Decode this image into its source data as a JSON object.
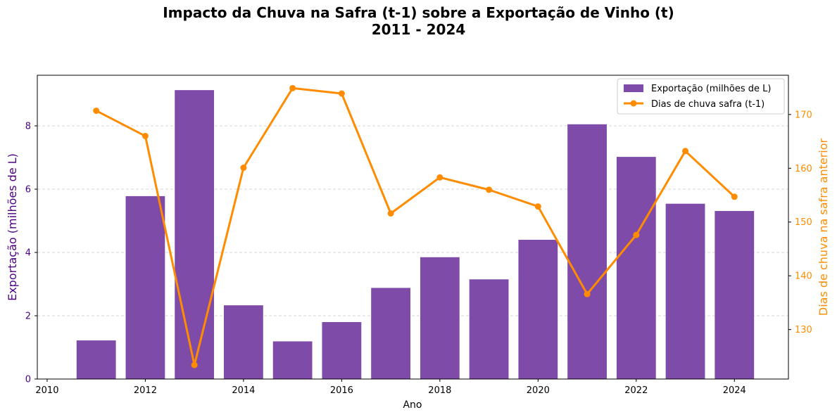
{
  "chart_data": {
    "type": "bar",
    "title": "Impacto da Chuva na Safra (t-1) sobre a Exportação de Vinho (t)",
    "subtitle": "2011 - 2024",
    "xlabel": "Ano",
    "ylabel_left": "Exportação (milhões de L)",
    "ylabel_right": "Dias de chuva na safra anterior",
    "x": [
      2011,
      2012,
      2013,
      2014,
      2015,
      2016,
      2017,
      2018,
      2019,
      2020,
      2021,
      2022,
      2023,
      2024
    ],
    "xlim": [
      2009.8,
      2025.1
    ],
    "ylim_left": [
      0,
      9.6
    ],
    "ylim_right": [
      120.8,
      177.3
    ],
    "x_ticks": [
      2010,
      2012,
      2014,
      2016,
      2018,
      2020,
      2022,
      2024
    ],
    "y_ticks_left": [
      0,
      2,
      4,
      6,
      8
    ],
    "y_ticks_right": [
      130,
      140,
      150,
      160,
      170
    ],
    "grid": "horizontal dashed",
    "legend_position": "upper right",
    "series": [
      {
        "name": "Exportação (milhões de L)",
        "kind": "bar",
        "axis": "left",
        "color": "#7E4BA8",
        "values": [
          1.22,
          5.78,
          9.13,
          2.33,
          1.19,
          1.8,
          2.88,
          3.85,
          3.15,
          4.4,
          8.05,
          7.02,
          5.54,
          5.31
        ]
      },
      {
        "name": "Dias de chuva safra (t-1)",
        "kind": "line",
        "axis": "right",
        "color": "#FF8C00",
        "values": [
          170.7,
          166.0,
          123.4,
          160.1,
          174.9,
          173.9,
          151.6,
          158.3,
          156.0,
          152.9,
          136.6,
          147.6,
          163.2,
          154.7
        ]
      }
    ],
    "colors": {
      "left_axis": "#4B0082",
      "right_axis": "#FF8C00"
    }
  }
}
